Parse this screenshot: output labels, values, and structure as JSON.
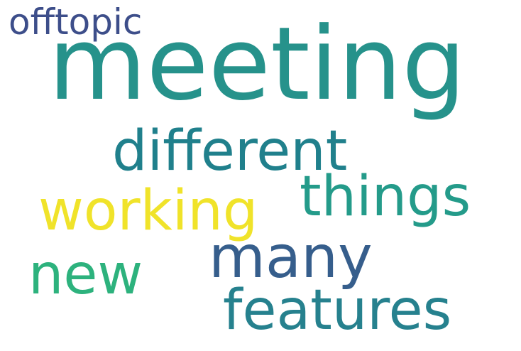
{
  "words": {
    "meeting": {
      "text": "meeting",
      "color": "#26928b"
    },
    "offtopic": {
      "text": "offtopic",
      "color": "#3d4e8a"
    },
    "different": {
      "text": "different",
      "color": "#20808c"
    },
    "working": {
      "text": "working",
      "color": "#f0e32a"
    },
    "things": {
      "text": "things",
      "color": "#249b8a"
    },
    "many": {
      "text": "many",
      "color": "#365e8c"
    },
    "new": {
      "text": "new",
      "color": "#2db27d"
    },
    "features": {
      "text": "features",
      "color": "#26818e"
    }
  }
}
